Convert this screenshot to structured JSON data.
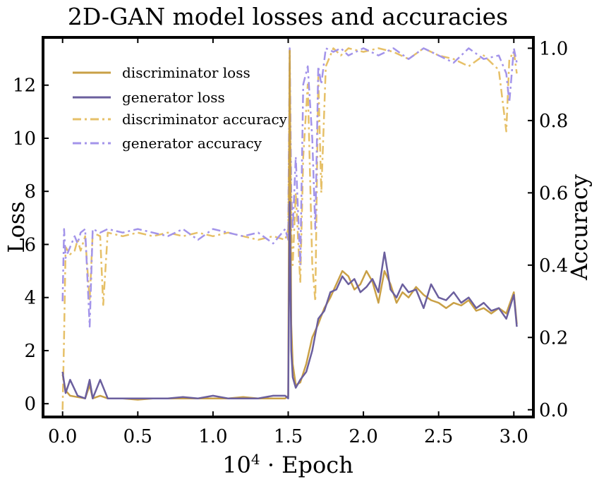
{
  "chart_data": {
    "type": "line",
    "title": "2D-GAN model losses and accuracies",
    "xlabel_prefix": "10",
    "xlabel_exponent": "4",
    "xlabel_suffix": " · Epoch",
    "ylabel_left": "Loss",
    "ylabel_right": "Accuracy",
    "xlim": [
      -0.13,
      3.13
    ],
    "ylim_left": [
      -0.5,
      13.8
    ],
    "ylim_right": [
      -0.02,
      1.03
    ],
    "x_ticks": [
      0.0,
      0.5,
      1.0,
      1.5,
      2.0,
      2.5,
      3.0
    ],
    "x_tick_labels": [
      "0.0",
      "0.5",
      "1.0",
      "1.5",
      "2.0",
      "2.5",
      "3.0"
    ],
    "y_left_ticks": [
      0,
      2,
      4,
      6,
      8,
      10,
      12
    ],
    "y_left_tick_labels": [
      "0",
      "2",
      "4",
      "6",
      "8",
      "10",
      "12"
    ],
    "y_right_ticks": [
      0.0,
      0.2,
      0.4,
      0.6,
      0.8,
      1.0
    ],
    "y_right_tick_labels": [
      "0.0",
      "0.2",
      "0.4",
      "0.6",
      "0.8",
      "1.0"
    ],
    "grid": false,
    "legend_placement": "top-left",
    "colors": {
      "discriminator": "#c9a046",
      "generator": "#6b5f9e",
      "discriminator_accuracy": "#e6c068",
      "generator_accuracy": "#a394ea"
    },
    "series": [
      {
        "name": "discriminator loss",
        "axis": "left",
        "style": "solid",
        "color": "#c9a046",
        "x": [
          0.0,
          0.02,
          0.05,
          0.1,
          0.15,
          0.18,
          0.2,
          0.25,
          0.3,
          0.4,
          0.5,
          0.6,
          0.7,
          0.8,
          0.9,
          1.0,
          1.1,
          1.2,
          1.3,
          1.4,
          1.48,
          1.5,
          1.51,
          1.52,
          1.53,
          1.55,
          1.58,
          1.62,
          1.66,
          1.7,
          1.74,
          1.78,
          1.82,
          1.86,
          1.9,
          1.94,
          1.98,
          2.02,
          2.06,
          2.1,
          2.14,
          2.18,
          2.22,
          2.26,
          2.3,
          2.35,
          2.4,
          2.45,
          2.5,
          2.55,
          2.6,
          2.65,
          2.7,
          2.75,
          2.8,
          2.85,
          2.9,
          2.95,
          3.0,
          3.02
        ],
        "values": [
          1.1,
          0.5,
          0.3,
          0.25,
          0.2,
          0.7,
          0.2,
          0.3,
          0.2,
          0.2,
          0.15,
          0.2,
          0.2,
          0.2,
          0.2,
          0.2,
          0.2,
          0.25,
          0.2,
          0.2,
          0.2,
          0.3,
          13.3,
          3.0,
          1.5,
          0.7,
          0.8,
          1.5,
          2.5,
          3.0,
          3.6,
          4.0,
          4.5,
          5.0,
          4.8,
          4.3,
          4.5,
          5.0,
          4.6,
          3.8,
          5.0,
          4.5,
          3.8,
          4.2,
          4.0,
          4.4,
          4.1,
          3.9,
          3.8,
          3.6,
          3.8,
          3.7,
          3.9,
          3.5,
          3.6,
          3.4,
          3.6,
          3.4,
          4.2,
          3.0
        ]
      },
      {
        "name": "generator loss",
        "axis": "left",
        "style": "solid",
        "color": "#6b5f9e",
        "x": [
          0.0,
          0.02,
          0.05,
          0.1,
          0.15,
          0.18,
          0.2,
          0.25,
          0.3,
          0.4,
          0.5,
          0.6,
          0.7,
          0.8,
          0.9,
          1.0,
          1.1,
          1.2,
          1.3,
          1.4,
          1.48,
          1.5,
          1.51,
          1.52,
          1.53,
          1.55,
          1.58,
          1.62,
          1.66,
          1.7,
          1.74,
          1.78,
          1.82,
          1.86,
          1.9,
          1.94,
          1.98,
          2.02,
          2.06,
          2.1,
          2.14,
          2.18,
          2.22,
          2.26,
          2.3,
          2.35,
          2.4,
          2.45,
          2.5,
          2.55,
          2.6,
          2.65,
          2.7,
          2.75,
          2.8,
          2.85,
          2.9,
          2.95,
          3.0,
          3.02
        ],
        "values": [
          1.2,
          0.4,
          0.9,
          0.3,
          0.2,
          0.9,
          0.2,
          0.9,
          0.2,
          0.2,
          0.2,
          0.2,
          0.2,
          0.25,
          0.2,
          0.3,
          0.2,
          0.2,
          0.2,
          0.3,
          0.3,
          0.2,
          7.6,
          2.0,
          1.0,
          0.6,
          0.9,
          1.2,
          2.0,
          3.2,
          3.5,
          4.2,
          4.3,
          4.8,
          4.5,
          4.7,
          4.2,
          4.4,
          4.7,
          4.2,
          5.7,
          4.3,
          4.0,
          4.5,
          4.2,
          4.3,
          3.6,
          4.5,
          4.0,
          3.9,
          4.2,
          3.8,
          4.0,
          3.6,
          3.8,
          3.5,
          3.6,
          3.2,
          4.1,
          2.9
        ]
      },
      {
        "name": "discriminator accuracy",
        "axis": "right",
        "style": "dashdot",
        "color": "#e6c068",
        "x": [
          0.0,
          0.01,
          0.02,
          0.05,
          0.08,
          0.1,
          0.12,
          0.15,
          0.18,
          0.2,
          0.25,
          0.27,
          0.3,
          0.4,
          0.5,
          0.6,
          0.7,
          0.8,
          0.9,
          1.0,
          1.1,
          1.2,
          1.3,
          1.4,
          1.48,
          1.5,
          1.51,
          1.52,
          1.53,
          1.55,
          1.58,
          1.6,
          1.63,
          1.66,
          1.68,
          1.7,
          1.72,
          1.75,
          1.8,
          1.85,
          1.9,
          2.0,
          2.1,
          2.2,
          2.3,
          2.4,
          2.5,
          2.6,
          2.7,
          2.8,
          2.9,
          2.95,
          2.97,
          3.0,
          3.02
        ],
        "values": [
          0.0,
          0.2,
          0.45,
          0.43,
          0.44,
          0.47,
          0.44,
          0.48,
          0.3,
          0.49,
          0.48,
          0.29,
          0.49,
          0.48,
          0.49,
          0.48,
          0.49,
          0.48,
          0.49,
          0.48,
          0.49,
          0.48,
          0.47,
          0.48,
          0.47,
          0.5,
          0.95,
          0.5,
          0.4,
          0.6,
          0.35,
          0.7,
          0.9,
          0.4,
          0.3,
          0.92,
          0.6,
          0.95,
          1.0,
          0.98,
          1.0,
          0.99,
          1.0,
          0.99,
          0.97,
          1.0,
          0.98,
          0.97,
          0.95,
          0.98,
          0.94,
          0.77,
          0.97,
          0.99,
          0.93
        ]
      },
      {
        "name": "generator accuracy",
        "axis": "right",
        "style": "dashdot",
        "color": "#a394ea",
        "x": [
          0.0,
          0.01,
          0.02,
          0.05,
          0.08,
          0.1,
          0.12,
          0.15,
          0.18,
          0.2,
          0.25,
          0.3,
          0.4,
          0.5,
          0.6,
          0.7,
          0.8,
          0.9,
          1.0,
          1.1,
          1.2,
          1.3,
          1.4,
          1.48,
          1.5,
          1.51,
          1.52,
          1.53,
          1.55,
          1.58,
          1.6,
          1.63,
          1.66,
          1.68,
          1.7,
          1.72,
          1.75,
          1.8,
          1.85,
          1.9,
          2.0,
          2.1,
          2.2,
          2.3,
          2.4,
          2.5,
          2.6,
          2.7,
          2.8,
          2.9,
          2.95,
          2.97,
          3.0,
          3.02
        ],
        "values": [
          0.3,
          0.5,
          0.42,
          0.45,
          0.48,
          0.46,
          0.49,
          0.5,
          0.23,
          0.5,
          0.49,
          0.5,
          0.49,
          0.5,
          0.49,
          0.48,
          0.5,
          0.47,
          0.5,
          0.49,
          0.48,
          0.49,
          0.46,
          0.5,
          0.47,
          1.0,
          0.6,
          0.5,
          0.7,
          0.4,
          0.9,
          0.95,
          0.75,
          0.5,
          0.95,
          0.9,
          1.0,
          0.99,
          1.0,
          0.98,
          1.0,
          0.98,
          1.0,
          0.97,
          1.0,
          0.98,
          0.96,
          1.0,
          0.97,
          0.98,
          0.93,
          0.85,
          1.0,
          0.96
        ]
      }
    ]
  }
}
